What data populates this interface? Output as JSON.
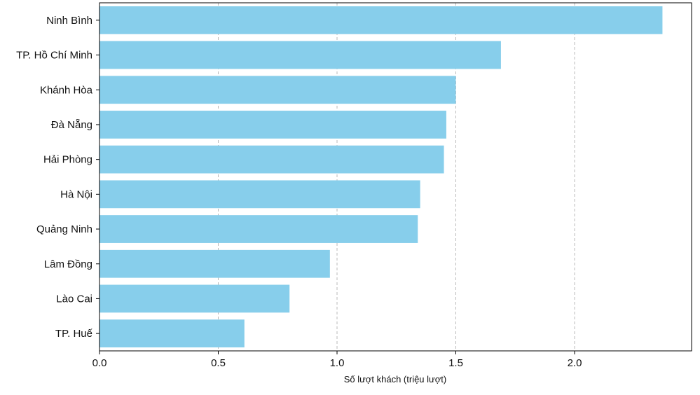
{
  "chart_data": {
    "type": "bar",
    "orientation": "horizontal",
    "categories": [
      "Ninh Bình",
      "TP. Hồ Chí Minh",
      "Khánh Hòa",
      "Đà Nẵng",
      "Hải Phòng",
      "Hà Nội",
      "Quảng Ninh",
      "Lâm Đồng",
      "Lào Cai",
      "TP. Huế"
    ],
    "values": [
      2.37,
      1.69,
      1.5,
      1.46,
      1.45,
      1.35,
      1.34,
      0.97,
      0.8,
      0.61
    ],
    "xlabel": "Số lượt khách (triệu lượt)",
    "ylabel": "",
    "title": "",
    "xlim": [
      0,
      2.5
    ],
    "xticks": [
      "0.0",
      "0.5",
      "1.0",
      "1.5",
      "2.0"
    ],
    "grid": "x, dashed",
    "bar_color": "#87CEEB"
  }
}
